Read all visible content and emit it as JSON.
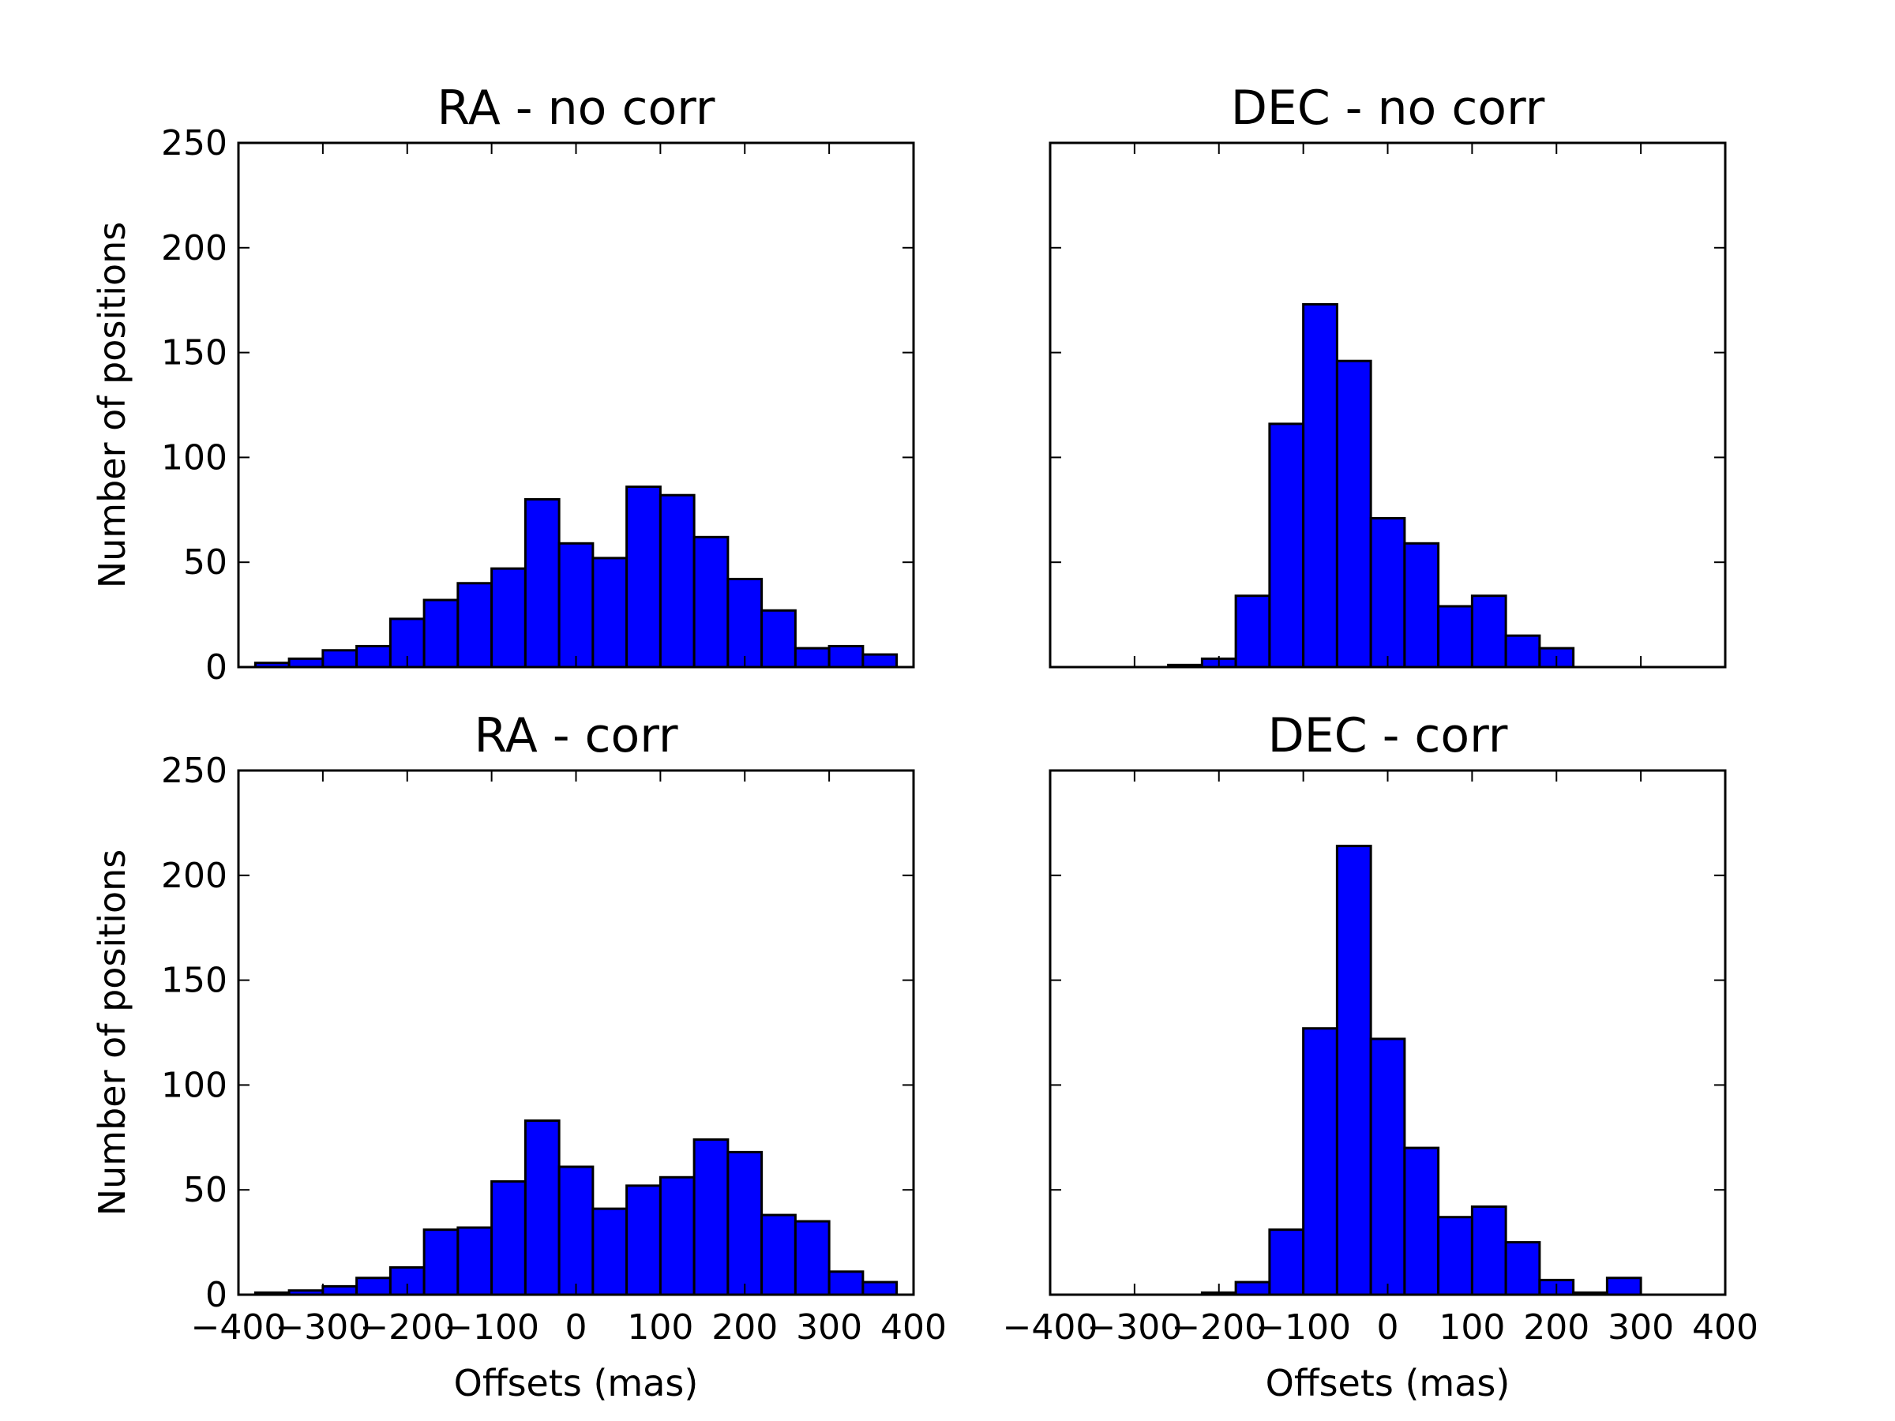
{
  "chart_data": [
    {
      "type": "bar",
      "title": "RA - no corr",
      "xlabel": "",
      "ylabel": "Number of positions",
      "xlim": [
        -400,
        400
      ],
      "ylim": [
        0,
        250
      ],
      "xticks": [
        -400,
        -300,
        -200,
        -100,
        0,
        100,
        200,
        300,
        400
      ],
      "yticks": [
        0,
        50,
        100,
        150,
        200,
        250
      ],
      "show_xtick_labels": false,
      "show_ytick_labels": true,
      "bin_edges": [
        -380,
        -340,
        -300,
        -260,
        -220,
        -180,
        -140,
        -100,
        -60,
        -20,
        20,
        60,
        100,
        140,
        180,
        220,
        260,
        300,
        340,
        380
      ],
      "values": [
        2,
        4,
        8,
        10,
        23,
        32,
        40,
        47,
        80,
        59,
        52,
        86,
        82,
        62,
        42,
        27,
        9,
        10,
        6
      ],
      "color": "#0000ff"
    },
    {
      "type": "bar",
      "title": "DEC - no corr",
      "xlabel": "",
      "ylabel": "",
      "xlim": [
        -400,
        400
      ],
      "ylim": [
        0,
        250
      ],
      "xticks": [
        -400,
        -300,
        -200,
        -100,
        0,
        100,
        200,
        300,
        400
      ],
      "yticks": [
        0,
        50,
        100,
        150,
        200,
        250
      ],
      "show_xtick_labels": false,
      "show_ytick_labels": false,
      "bin_edges": [
        -380,
        -340,
        -300,
        -260,
        -220,
        -180,
        -140,
        -100,
        -60,
        -20,
        20,
        60,
        100,
        140,
        180,
        220,
        260,
        300,
        340,
        380
      ],
      "values": [
        0,
        0,
        0,
        1,
        4,
        34,
        116,
        173,
        146,
        71,
        59,
        29,
        34,
        15,
        9,
        0,
        0,
        0,
        0
      ],
      "color": "#0000ff"
    },
    {
      "type": "bar",
      "title": "RA - corr",
      "xlabel": "Offsets (mas)",
      "ylabel": "Number of positions",
      "xlim": [
        -400,
        400
      ],
      "ylim": [
        0,
        250
      ],
      "xticks": [
        -400,
        -300,
        -200,
        -100,
        0,
        100,
        200,
        300,
        400
      ],
      "xtick_labels": [
        "−400",
        "−300",
        "−200",
        "−100",
        "0",
        "100",
        "200",
        "300",
        "400"
      ],
      "yticks": [
        0,
        50,
        100,
        150,
        200,
        250
      ],
      "show_xtick_labels": true,
      "show_ytick_labels": true,
      "bin_edges": [
        -380,
        -340,
        -300,
        -260,
        -220,
        -180,
        -140,
        -100,
        -60,
        -20,
        20,
        60,
        100,
        140,
        180,
        220,
        260,
        300,
        340,
        380
      ],
      "values": [
        1,
        2,
        4,
        8,
        13,
        31,
        32,
        54,
        83,
        61,
        41,
        52,
        56,
        74,
        68,
        38,
        35,
        11,
        6
      ],
      "color": "#0000ff"
    },
    {
      "type": "bar",
      "title": "DEC - corr",
      "xlabel": "Offsets (mas)",
      "ylabel": "",
      "xlim": [
        -400,
        400
      ],
      "ylim": [
        0,
        250
      ],
      "xticks": [
        -400,
        -300,
        -200,
        -100,
        0,
        100,
        200,
        300,
        400
      ],
      "xtick_labels": [
        "−400",
        "−300",
        "−200",
        "−100",
        "0",
        "100",
        "200",
        "300",
        "400"
      ],
      "yticks": [
        0,
        50,
        100,
        150,
        200,
        250
      ],
      "show_xtick_labels": true,
      "show_ytick_labels": false,
      "bin_edges": [
        -380,
        -340,
        -300,
        -260,
        -220,
        -180,
        -140,
        -100,
        -60,
        -20,
        20,
        60,
        100,
        140,
        180,
        220,
        260,
        300,
        340,
        380
      ],
      "values": [
        0,
        0,
        0,
        0,
        1,
        6,
        31,
        127,
        214,
        122,
        70,
        37,
        42,
        25,
        7,
        1,
        8,
        0,
        0
      ],
      "color": "#0000ff"
    }
  ]
}
